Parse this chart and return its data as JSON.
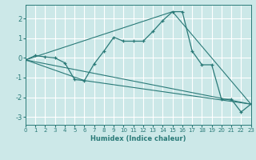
{
  "xlabel": "Humidex (Indice chaleur)",
  "bg_color": "#cce8e8",
  "grid_color": "#ffffff",
  "line_color": "#2a7a78",
  "xlim": [
    0,
    23
  ],
  "ylim": [
    -3.4,
    2.7
  ],
  "yticks": [
    -3,
    -2,
    -1,
    0,
    1,
    2
  ],
  "xticks": [
    0,
    1,
    2,
    3,
    4,
    5,
    6,
    7,
    8,
    9,
    10,
    11,
    12,
    13,
    14,
    15,
    16,
    17,
    18,
    19,
    20,
    21,
    22,
    23
  ],
  "curve_x": [
    0,
    1,
    2,
    3,
    4,
    5,
    6,
    7,
    8,
    9,
    10,
    11,
    12,
    13,
    14,
    15,
    16,
    17,
    18,
    19,
    20,
    21,
    22,
    23
  ],
  "curve_y": [
    -0.1,
    0.12,
    0.05,
    0.0,
    -0.25,
    -1.1,
    -1.15,
    -0.3,
    0.35,
    1.05,
    0.85,
    0.85,
    0.85,
    1.35,
    1.9,
    2.35,
    2.35,
    0.35,
    -0.35,
    -0.35,
    -2.1,
    -2.1,
    -2.75,
    -2.35
  ],
  "line1_x": [
    0,
    23
  ],
  "line1_y": [
    -0.1,
    -2.35
  ],
  "line2_x": [
    0,
    6,
    23
  ],
  "line2_y": [
    -0.1,
    -1.15,
    -2.35
  ],
  "line3_x": [
    0,
    15,
    23
  ],
  "line3_y": [
    -0.1,
    2.35,
    -2.35
  ]
}
